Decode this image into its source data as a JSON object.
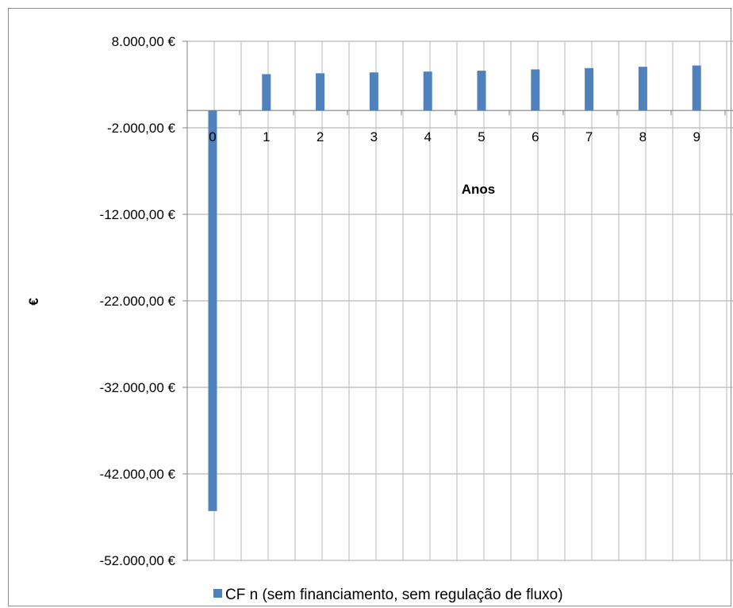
{
  "chart_data": {
    "type": "bar",
    "categories": [
      "0",
      "1",
      "2",
      "3",
      "4",
      "5",
      "6",
      "7",
      "8",
      "9"
    ],
    "series": [
      {
        "name": "CF n (sem financiamento, sem regulação de fluxo)",
        "color": "#4f81bd",
        "values": [
          -46300,
          4200,
          4300,
          4400,
          4500,
          4600,
          4750,
          4900,
          5050,
          5200
        ]
      }
    ],
    "y_ticks": [
      8000,
      -2000,
      -12000,
      -22000,
      -32000,
      -42000,
      -52000
    ],
    "y_tick_labels": [
      "8.000,00 €",
      "-2.000,00 €",
      "-12.000,00 €",
      "-22.000,00 €",
      "-32.000,00 €",
      "-42.000,00 €",
      "-52.000,00 €"
    ],
    "ylim": [
      -52000,
      8000
    ],
    "xlabel": "Anos",
    "ylabel": "€",
    "grid": true,
    "legend_position": "bottom"
  }
}
